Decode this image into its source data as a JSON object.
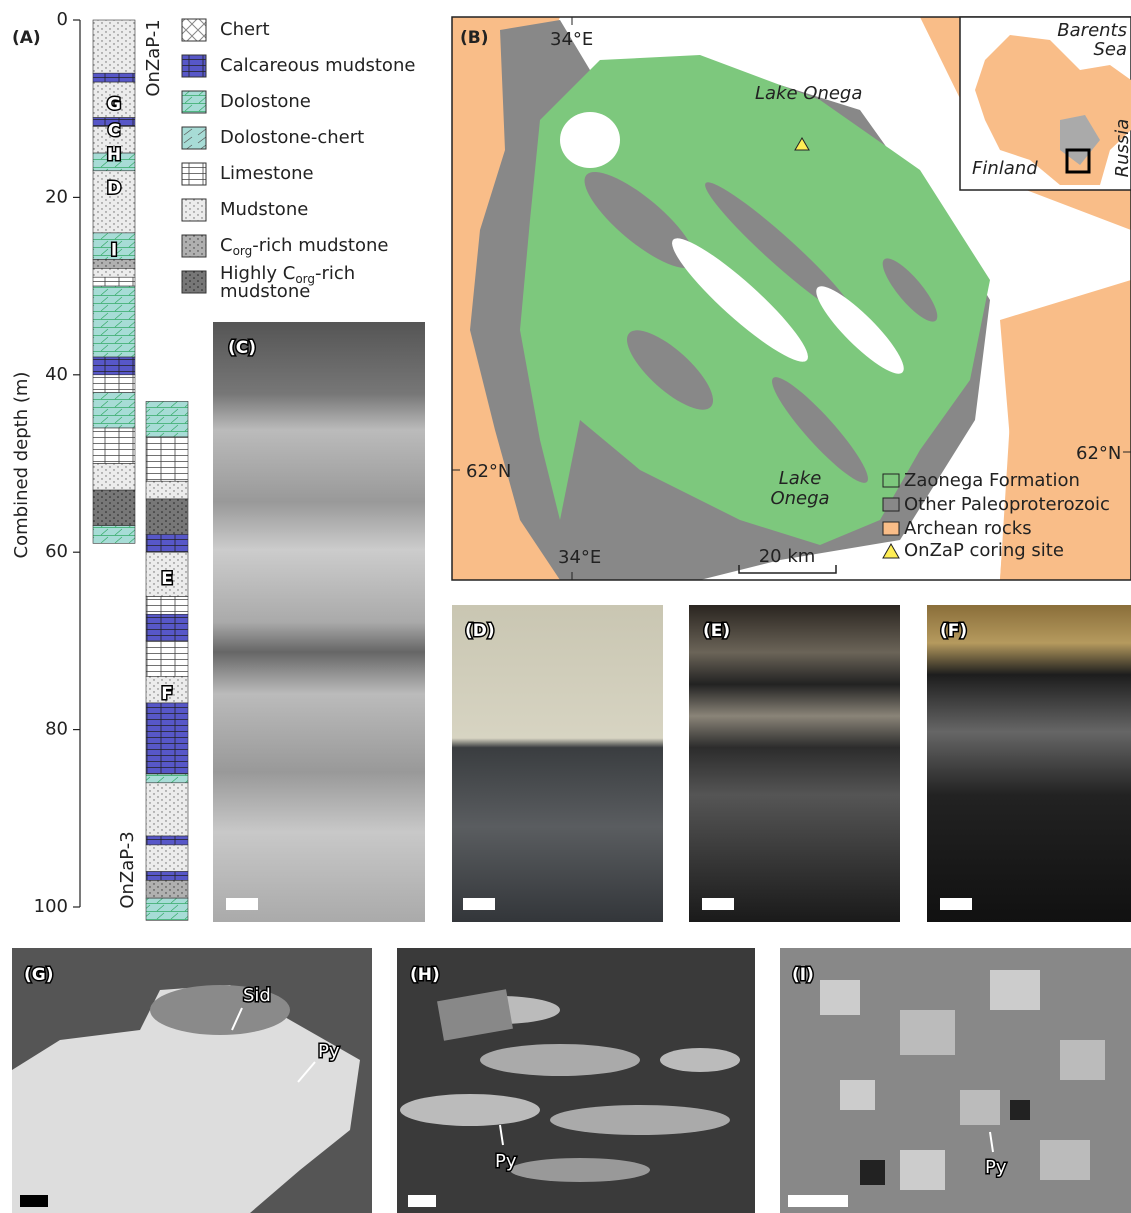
{
  "panel_a": {
    "label": "(A)",
    "axis_label": "Combined depth (m)",
    "ylim": [
      0,
      100
    ],
    "yticks": [
      0,
      20,
      40,
      60,
      80,
      100
    ],
    "cores": [
      {
        "name": "OnZaP-1",
        "layers": [
          [
            0,
            6,
            5
          ],
          [
            6,
            7,
            1
          ],
          [
            7,
            11,
            5
          ],
          [
            11,
            12,
            1
          ],
          [
            12,
            15,
            5
          ],
          [
            15,
            17,
            2
          ],
          [
            17,
            24,
            5
          ],
          [
            24,
            27,
            2
          ],
          [
            27,
            28,
            6
          ],
          [
            28,
            29,
            5
          ],
          [
            29,
            30,
            4
          ],
          [
            30,
            38,
            2
          ],
          [
            38,
            40,
            1
          ],
          [
            40,
            42,
            4
          ],
          [
            42,
            46,
            2
          ],
          [
            46,
            50,
            4
          ],
          [
            50,
            53,
            5
          ],
          [
            53,
            57,
            7
          ],
          [
            57,
            59,
            2
          ]
        ]
      },
      {
        "name": "OnZaP-3",
        "layers": [
          [
            43,
            47,
            2
          ],
          [
            47,
            52,
            4
          ],
          [
            52,
            54,
            5
          ],
          [
            54,
            58,
            7
          ],
          [
            58,
            60,
            1
          ],
          [
            60,
            65,
            5
          ],
          [
            65,
            67,
            4
          ],
          [
            67,
            70,
            1
          ],
          [
            70,
            74,
            4
          ],
          [
            74,
            77,
            5
          ],
          [
            77,
            85,
            1
          ],
          [
            85,
            86,
            2
          ],
          [
            86,
            92,
            5
          ],
          [
            92,
            93,
            1
          ],
          [
            93,
            96,
            5
          ],
          [
            96,
            97,
            1
          ],
          [
            97,
            99,
            6
          ],
          [
            99,
            101.5,
            2
          ]
        ]
      }
    ],
    "sample_markers": [
      {
        "label": "G",
        "core": 0,
        "depth": 9.5
      },
      {
        "label": "C",
        "core": 0,
        "depth": 12.5
      },
      {
        "label": "H",
        "core": 0,
        "depth": 15.2
      },
      {
        "label": "D",
        "core": 0,
        "depth": 19
      },
      {
        "label": "I",
        "core": 0,
        "depth": 26
      },
      {
        "label": "E",
        "core": 1,
        "depth": 63
      },
      {
        "label": "F",
        "core": 1,
        "depth": 76
      }
    ],
    "legend": [
      {
        "text": [
          "Chert"
        ]
      },
      {
        "text": [
          "Calcareous mudstone"
        ]
      },
      {
        "text": [
          "Dolostone"
        ]
      },
      {
        "text": [
          "Dolostone-chert"
        ]
      },
      {
        "text": [
          "Limestone"
        ]
      },
      {
        "text": [
          "Mudstone"
        ]
      },
      {
        "text": [
          "C",
          "org",
          "-rich mudstone"
        ]
      },
      {
        "text": [
          "Highly C",
          "org",
          "-rich",
          "mudstone"
        ]
      }
    ]
  },
  "panel_b": {
    "label": "(B)",
    "lon_labels": [
      "34°E",
      "34°E"
    ],
    "lat_labels": [
      "62°N",
      "62°N"
    ],
    "lake_label_top": "Lake Onega",
    "lake_label_bottom": [
      "Lake",
      "Onega"
    ],
    "inset": {
      "sea": [
        "Barents",
        "Sea"
      ],
      "finland": "Finland",
      "russia": "Russia"
    },
    "legend": [
      "Zaonega Formation",
      "Other Paleoproterozoic",
      "Archean rocks",
      "OnZaP coring site"
    ],
    "scale_bar": "20 km"
  },
  "photos": {
    "c": "(C)",
    "d": "(D)",
    "e": "(E)",
    "f": "(F)"
  },
  "sem": {
    "g": {
      "label": "(G)",
      "annotations": [
        "Sid",
        "Py"
      ]
    },
    "h": {
      "label": "(H)",
      "annotations": [
        "Py"
      ]
    },
    "i": {
      "label": "(I)",
      "annotations": [
        "Py"
      ]
    }
  }
}
